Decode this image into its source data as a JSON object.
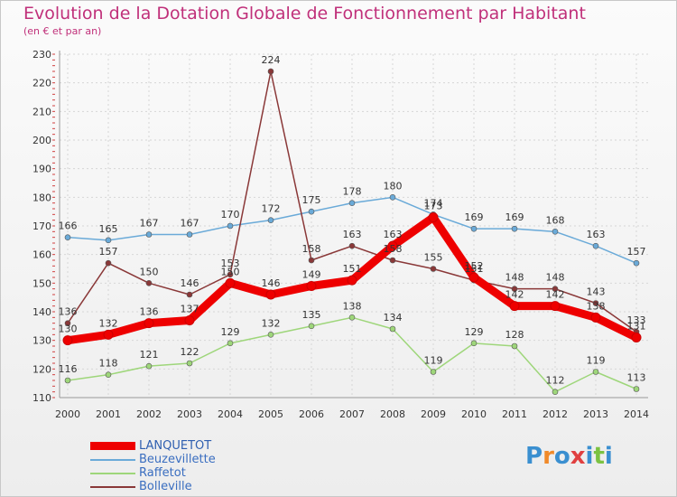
{
  "title": "Evolution de la Dotation Globale de Fonctionnement par Habitant",
  "subtitle": "(en € et par an)",
  "logo": {
    "letters": [
      "P",
      "r",
      "o",
      "x",
      "i",
      "t",
      "i"
    ],
    "colors": [
      "#3a8fd0",
      "#f08a2a",
      "#3a8fd0",
      "#e04040",
      "#3a8fd0",
      "#7cc242",
      "#3a8fd0"
    ]
  },
  "chart_data": {
    "type": "line",
    "title": "Evolution de la Dotation Globale de Fonctionnement par Habitant",
    "subtitle": "(en € et par an)",
    "xlabel": "",
    "ylabel": "",
    "x": [
      "2000",
      "2001",
      "2002",
      "2003",
      "2004",
      "2005",
      "2006",
      "2007",
      "2008",
      "2009",
      "2010",
      "2011",
      "2012",
      "2013",
      "2014"
    ],
    "ylim": [
      110,
      230
    ],
    "yticks": [
      "110",
      "120",
      "130",
      "140",
      "150",
      "160",
      "170",
      "180",
      "190",
      "200",
      "210",
      "220",
      "230"
    ],
    "legend_position": "bottom-left",
    "series": [
      {
        "name": "Beuzevillette",
        "color": "#6aaad8",
        "width": 1.5,
        "values": [
          166,
          165,
          167,
          167,
          170,
          172,
          175,
          178,
          180,
          174,
          169,
          169,
          168,
          163,
          157
        ],
        "labels": [
          "166",
          "165",
          "167",
          "167",
          "170",
          "172",
          "175",
          "178",
          "180",
          "174",
          "169",
          "169",
          "168",
          "163",
          "157"
        ]
      },
      {
        "name": "Raffetot",
        "color": "#9ed67a",
        "width": 1.5,
        "values": [
          116,
          118,
          121,
          122,
          129,
          132,
          135,
          138,
          134,
          119,
          129,
          128,
          112,
          119,
          113
        ],
        "labels": [
          "116",
          "118",
          "121",
          "122",
          "129",
          "132",
          "135",
          "138",
          "134",
          "119",
          "129",
          "128",
          "112",
          "119",
          "113"
        ]
      },
      {
        "name": "Bolleville",
        "color": "#8a3838",
        "width": 1.5,
        "values": [
          136,
          157,
          150,
          146,
          153,
          224,
          158,
          163,
          158,
          155,
          151,
          148,
          148,
          143,
          133
        ],
        "labels": [
          "136",
          "157",
          "150",
          "146",
          "153",
          "224",
          "158",
          "163",
          "158",
          "155",
          "151",
          "148",
          "148",
          "143",
          "133"
        ]
      },
      {
        "name": "LANQUETOT",
        "color": "#ee0000",
        "width": 9,
        "values": [
          130,
          132,
          136,
          137,
          150,
          146,
          149,
          151,
          163,
          173,
          152,
          142,
          142,
          138,
          131
        ],
        "labels": [
          "130",
          "132",
          "136",
          "137",
          "150",
          "146",
          "149",
          "151",
          "163",
          "173",
          "152",
          "142",
          "142",
          "138",
          "131"
        ]
      }
    ],
    "legend": [
      {
        "name": "LANQUETOT",
        "color": "#ee0000",
        "thick": true
      },
      {
        "name": "Beuzevillette",
        "color": "#6aaad8",
        "thick": false
      },
      {
        "name": "Raffetot",
        "color": "#9ed67a",
        "thick": false
      },
      {
        "name": "Bolleville",
        "color": "#8a3838",
        "thick": false
      }
    ]
  }
}
